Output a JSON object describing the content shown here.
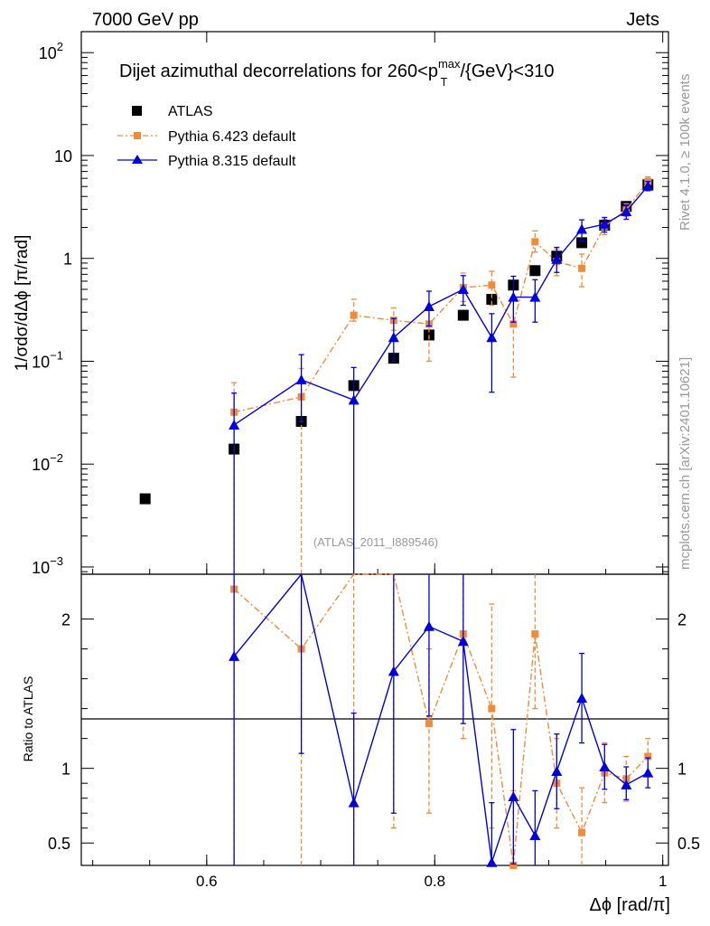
{
  "header": {
    "energy_label": "7000 GeV pp",
    "category_label": "Jets",
    "rivet_label": "Rivet 4.1.0, ≥ 100k events",
    "mcplots_label": "mcplots.cern.ch [arXiv:2401.10621]",
    "analysis_label": "(ATLAS_2011_I889546)"
  },
  "colors": {
    "atlas": "#000000",
    "pythia6": "#f28a3c",
    "pythia8": "#0000dd",
    "side_text": "#999999"
  },
  "chart_data": {
    "type": "scatter",
    "title_parts": {
      "prefix": "Dijet azimuthal decorrelations for 260<p",
      "sup": "max",
      "sub": "T",
      "suffix": "/{GeV}<310"
    },
    "xlabel": "Δϕ [rad/π]",
    "ylabel": "1/σdσ/dΔϕ [π/rad]",
    "ratio_ylabel": "Ratio to ATLAS",
    "xlim": [
      0.49,
      1.005
    ],
    "ylim": [
      0.00085,
      160
    ],
    "ratio_ylim": [
      0.35,
      2.3
    ],
    "x_ticks": [
      "0.6",
      "0.8",
      "1"
    ],
    "y_ticks": [
      {
        "base": "10",
        "exp": "2",
        "value": 100
      },
      {
        "base": "10",
        "exp": "",
        "value": 10
      },
      {
        "base": "1",
        "exp": "",
        "value": 1
      },
      {
        "base": "10",
        "exp": "−1",
        "value": 0.1
      },
      {
        "base": "10",
        "exp": "−2",
        "value": 0.01
      },
      {
        "base": "10",
        "exp": "−3",
        "value": 0.001
      }
    ],
    "ratio_ticks": [
      "2",
      "1",
      "0.5"
    ],
    "legend": [
      "ATLAS",
      "Pythia 6.423 default",
      "Pythia 8.315 default"
    ],
    "series": [
      {
        "name": "ATLAS",
        "x": [
          0.546,
          0.624,
          0.683,
          0.729,
          0.764,
          0.795,
          0.825,
          0.85,
          0.869,
          0.888,
          0.907,
          0.929,
          0.949,
          0.968,
          0.987
        ],
        "y": [
          0.0046,
          0.014,
          0.026,
          0.058,
          0.107,
          0.18,
          0.28,
          0.4,
          0.55,
          0.76,
          1.05,
          1.42,
          2.1,
          3.2,
          5.2
        ]
      },
      {
        "name": "Pythia 6.423 default",
        "x": [
          0.624,
          0.683,
          0.729,
          0.764,
          0.795,
          0.825,
          0.85,
          0.869,
          0.888,
          0.907,
          0.929,
          0.949,
          0.968,
          0.987
        ],
        "y": [
          0.032,
          0.045,
          0.28,
          0.25,
          0.23,
          0.52,
          0.55,
          0.23,
          1.45,
          0.93,
          0.8,
          2.05,
          2.95,
          5.6
        ],
        "err_low": [
          0.032,
          0.045,
          0.035,
          0.05,
          0.13,
          0.14,
          0.2,
          0.16,
          0.3,
          0.25,
          0.27,
          0.35,
          0.4,
          0.5
        ],
        "err_high": [
          0.03,
          0.04,
          0.12,
          0.08,
          0.09,
          0.2,
          0.2,
          0.18,
          0.4,
          0.3,
          0.3,
          0.35,
          0.45,
          0.6
        ],
        "ratio": [
          2.2,
          1.8,
          3.0,
          2.4,
          1.3,
          1.9,
          1.4,
          0.35,
          1.9,
          0.9,
          0.57,
          0.97,
          0.93,
          1.08
        ],
        "ratio_err_low": [
          2.0,
          1.5,
          2.8,
          1.8,
          0.6,
          0.7,
          0.8,
          0.3,
          0.5,
          0.3,
          0.25,
          0.2,
          0.15,
          0.12
        ],
        "ratio_err_high": [
          1.2,
          1.0,
          1.2,
          0.8,
          0.5,
          0.5,
          0.7,
          0.5,
          0.4,
          0.3,
          0.3,
          0.2,
          0.15,
          0.12
        ]
      },
      {
        "name": "Pythia 8.315 default",
        "x": [
          0.624,
          0.683,
          0.729,
          0.764,
          0.795,
          0.825,
          0.85,
          0.869,
          0.888,
          0.907,
          0.929,
          0.949,
          0.968,
          0.987
        ],
        "y": [
          0.024,
          0.066,
          0.042,
          0.17,
          0.34,
          0.5,
          0.17,
          0.42,
          0.42,
          0.98,
          1.92,
          2.15,
          2.85,
          5.05
        ],
        "err_low": [
          0.024,
          0.04,
          0.042,
          0.07,
          0.12,
          0.15,
          0.12,
          0.18,
          0.18,
          0.25,
          0.45,
          0.35,
          0.45,
          0.5
        ],
        "err_high": [
          0.025,
          0.05,
          0.045,
          0.09,
          0.14,
          0.18,
          0.12,
          0.25,
          0.2,
          0.3,
          0.45,
          0.35,
          0.45,
          0.55
        ],
        "ratio": [
          1.75,
          2.6,
          0.77,
          1.65,
          1.95,
          1.85,
          0.37,
          0.81,
          0.55,
          0.98,
          1.47,
          1.01,
          0.89,
          0.97
        ],
        "ratio_err_low": [
          1.7,
          1.5,
          0.77,
          0.95,
          0.6,
          0.55,
          0.37,
          0.45,
          0.25,
          0.25,
          0.3,
          0.15,
          0.1,
          0.1
        ],
        "ratio_err_high": [
          1.0,
          1.0,
          0.6,
          0.9,
          0.5,
          0.55,
          0.4,
          0.45,
          0.3,
          0.25,
          0.3,
          0.15,
          0.12,
          0.1
        ]
      }
    ]
  }
}
